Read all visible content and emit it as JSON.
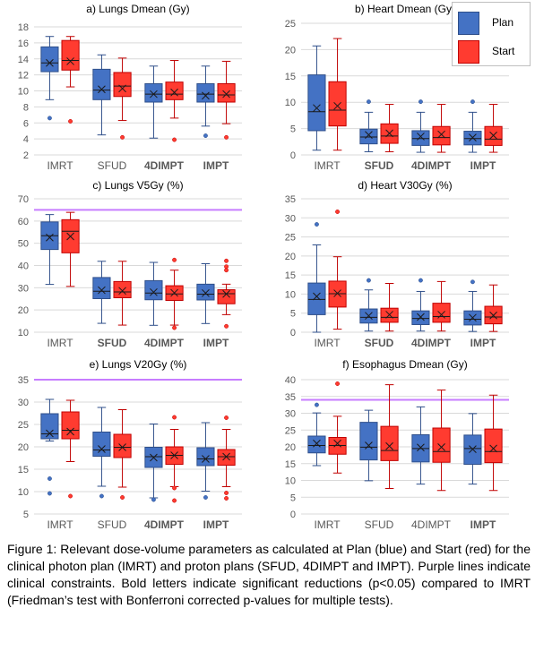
{
  "colors": {
    "plan_fill": "#4472c4",
    "plan_edge": "#2f4f8a",
    "start_fill": "#ff3b30",
    "start_edge": "#c00000",
    "constraint": "#c77dff",
    "grid": "#d9d9d9",
    "axis_text": "#595959"
  },
  "legend": {
    "plan_label": "Plan",
    "start_label": "Start"
  },
  "caption": "Figure 1: Relevant dose-volume parameters as calculated at Plan (blue) and Start (red) for the clinical photon plan (IMRT) and proton plans (SFUD, 4DIMPT and IMPT). Purple lines indicate clinical constraints. Bold letters indicate significant reductions (p<0.05) compared to IMRT (Friedman’s test with Bonferroni corrected p-values for multiple tests).",
  "chart_data": [
    {
      "type": "box",
      "title": "a) Lungs Dmean (Gy)",
      "categories": [
        "IMRT",
        "SFUD",
        "4DIMPT",
        "IMPT"
      ],
      "bold": [
        false,
        false,
        true,
        true
      ],
      "ylim": [
        2,
        18
      ],
      "ticks": [
        2,
        4,
        6,
        8,
        10,
        12,
        14,
        16,
        18
      ],
      "constraint": null,
      "series": [
        {
          "name": "Plan",
          "boxes": [
            {
              "min": 8.9,
              "q1": 12.4,
              "median": 13.5,
              "q3": 15.5,
              "max": 16.8,
              "mean": 13.5,
              "outliers": [
                6.6
              ]
            },
            {
              "min": 4.5,
              "q1": 8.9,
              "median": 10.1,
              "q3": 12.7,
              "max": 14.5,
              "mean": 10.2,
              "outliers": []
            },
            {
              "min": 4.1,
              "q1": 8.6,
              "median": 9.6,
              "q3": 10.9,
              "max": 13.1,
              "mean": 9.6,
              "outliers": []
            },
            {
              "min": 5.6,
              "q1": 8.6,
              "median": 9.6,
              "q3": 10.9,
              "max": 13.1,
              "mean": 9.4,
              "outliers": [
                4.4
              ]
            }
          ]
        },
        {
          "name": "Start",
          "boxes": [
            {
              "min": 10.5,
              "q1": 12.6,
              "median": 13.8,
              "q3": 16.3,
              "max": 16.8,
              "mean": 13.7,
              "outliers": [
                6.2
              ]
            },
            {
              "min": 6.3,
              "q1": 9.3,
              "median": 10.6,
              "q3": 12.3,
              "max": 14.1,
              "mean": 10.3,
              "outliers": [
                4.2
              ]
            },
            {
              "min": 6.6,
              "q1": 8.9,
              "median": 9.6,
              "q3": 11.1,
              "max": 13.8,
              "mean": 9.8,
              "outliers": [
                3.9
              ]
            },
            {
              "min": 5.9,
              "q1": 8.6,
              "median": 9.5,
              "q3": 10.9,
              "max": 13.7,
              "mean": 9.6,
              "outliers": [
                4.2
              ]
            }
          ]
        }
      ]
    },
    {
      "type": "box",
      "title": "b) Heart Dmean (Gy)",
      "categories": [
        "IMRT",
        "SFUD",
        "4DIMPT",
        "IMPT"
      ],
      "bold": [
        false,
        true,
        true,
        true
      ],
      "ylim": [
        0,
        25
      ],
      "ticks": [
        0,
        5,
        10,
        15,
        20,
        25
      ],
      "constraint": null,
      "series": [
        {
          "name": "Plan",
          "boxes": [
            {
              "min": 0.9,
              "q1": 4.6,
              "median": 8.2,
              "q3": 15.2,
              "max": 20.7,
              "mean": 8.9,
              "outliers": []
            },
            {
              "min": 0.6,
              "q1": 2.1,
              "median": 3.4,
              "q3": 4.9,
              "max": 8.1,
              "mean": 3.8,
              "outliers": [
                10.1
              ]
            },
            {
              "min": 0.5,
              "q1": 1.8,
              "median": 3.1,
              "q3": 4.6,
              "max": 8.1,
              "mean": 3.5,
              "outliers": [
                10.1
              ]
            },
            {
              "min": 0.5,
              "q1": 1.9,
              "median": 3.1,
              "q3": 4.5,
              "max": 8.1,
              "mean": 3.3,
              "outliers": [
                10.1
              ]
            }
          ]
        },
        {
          "name": "Start",
          "boxes": [
            {
              "min": 0.9,
              "q1": 5.5,
              "median": 8.5,
              "q3": 13.9,
              "max": 22.1,
              "mean": 9.3,
              "outliers": []
            },
            {
              "min": 0.6,
              "q1": 2.2,
              "median": 3.6,
              "q3": 5.9,
              "max": 9.6,
              "mean": 4.1,
              "outliers": []
            },
            {
              "min": 0.5,
              "q1": 1.9,
              "median": 3.3,
              "q3": 5.4,
              "max": 9.6,
              "mean": 3.9,
              "outliers": []
            },
            {
              "min": 0.5,
              "q1": 1.8,
              "median": 3.0,
              "q3": 5.4,
              "max": 9.6,
              "mean": 3.7,
              "outliers": []
            }
          ]
        }
      ]
    },
    {
      "type": "box",
      "title": "c) Lungs V5Gy (%)",
      "categories": [
        "IMRT",
        "SFUD",
        "4DIMPT",
        "IMPT"
      ],
      "bold": [
        false,
        true,
        true,
        true
      ],
      "ylim": [
        10,
        70
      ],
      "ticks": [
        10,
        20,
        30,
        40,
        50,
        60,
        70
      ],
      "constraint": 65,
      "series": [
        {
          "name": "Plan",
          "boxes": [
            {
              "min": 31.5,
              "q1": 47.2,
              "median": 53.4,
              "q3": 59.6,
              "max": 62.9,
              "mean": 52.6,
              "outliers": []
            },
            {
              "min": 14,
              "q1": 25.1,
              "median": 28.4,
              "q3": 34.6,
              "max": 41.9,
              "mean": 28.9,
              "outliers": []
            },
            {
              "min": 13.1,
              "q1": 24.6,
              "median": 27.6,
              "q3": 33.2,
              "max": 41.4,
              "mean": 28.0,
              "outliers": []
            },
            {
              "min": 13.9,
              "q1": 24.5,
              "median": 27.1,
              "q3": 31.6,
              "max": 40.8,
              "mean": 27.6,
              "outliers": []
            }
          ]
        },
        {
          "name": "Start",
          "boxes": [
            {
              "min": 30.6,
              "q1": 45.7,
              "median": 55.4,
              "q3": 60.6,
              "max": 63.9,
              "mean": 53.1,
              "outliers": []
            },
            {
              "min": 13.2,
              "q1": 25.5,
              "median": 28.1,
              "q3": 32.8,
              "max": 41.9,
              "mean": 28.6,
              "outliers": []
            },
            {
              "min": 13.2,
              "q1": 24.3,
              "median": 27.2,
              "q3": 30.9,
              "max": 37.9,
              "mean": 27.7,
              "outliers": [
                42.5,
                12.0
              ]
            },
            {
              "min": 17.9,
              "q1": 22.8,
              "median": 27.3,
              "q3": 29.1,
              "max": 31.6,
              "mean": 27.2,
              "outliers": [
                42.1,
                39.5,
                37.9,
                12.7
              ]
            }
          ]
        }
      ]
    },
    {
      "type": "box",
      "title": "d) Heart V30Gy (%)",
      "categories": [
        "IMRT",
        "SFUD",
        "4DIMPT",
        "IMPT"
      ],
      "bold": [
        false,
        true,
        true,
        true
      ],
      "ylim": [
        0,
        35
      ],
      "ticks": [
        0,
        5,
        10,
        15,
        20,
        25,
        30,
        35
      ],
      "constraint": null,
      "series": [
        {
          "name": "Plan",
          "boxes": [
            {
              "min": 0,
              "q1": 4.6,
              "median": 8.6,
              "q3": 12.9,
              "max": 22.9,
              "mean": 9.4,
              "outliers": [
                28.3
              ]
            },
            {
              "min": 0.3,
              "q1": 2.4,
              "median": 3.9,
              "q3": 6.1,
              "max": 11.1,
              "mean": 4.3,
              "outliers": [
                13.6
              ]
            },
            {
              "min": 0.3,
              "q1": 2.0,
              "median": 3.6,
              "q3": 5.6,
              "max": 10.7,
              "mean": 4.0,
              "outliers": [
                13.6
              ]
            },
            {
              "min": 0.2,
              "q1": 1.9,
              "median": 3.4,
              "q3": 5.6,
              "max": 10.7,
              "mean": 3.8,
              "outliers": [
                13.2
              ]
            }
          ]
        },
        {
          "name": "Start",
          "boxes": [
            {
              "min": 0.8,
              "q1": 6.6,
              "median": 10.1,
              "q3": 13.4,
              "max": 19.8,
              "mean": 10.2,
              "outliers": [
                31.6
              ]
            },
            {
              "min": 0.3,
              "q1": 2.6,
              "median": 3.9,
              "q3": 6.3,
              "max": 12.8,
              "mean": 4.6,
              "outliers": []
            },
            {
              "min": 0.3,
              "q1": 2.6,
              "median": 4.1,
              "q3": 7.6,
              "max": 13.3,
              "mean": 4.6,
              "outliers": []
            },
            {
              "min": 0.2,
              "q1": 2.2,
              "median": 4.0,
              "q3": 6.8,
              "max": 12.4,
              "mean": 4.4,
              "outliers": []
            }
          ]
        }
      ]
    },
    {
      "type": "box",
      "title": "e) Lungs V20Gy (%)",
      "categories": [
        "IMRT",
        "SFUD",
        "4DIMPT",
        "IMPT"
      ],
      "bold": [
        false,
        false,
        true,
        true
      ],
      "ylim": [
        5,
        35
      ],
      "ticks": [
        5,
        10,
        15,
        20,
        25,
        30,
        35
      ],
      "constraint": 35,
      "series": [
        {
          "name": "Plan",
          "boxes": [
            {
              "min": 21.3,
              "q1": 21.8,
              "median": 22.9,
              "q3": 27.4,
              "max": 30.6,
              "mean": 23.0,
              "outliers": [
                12.9,
                9.6
              ]
            },
            {
              "min": 11.2,
              "q1": 17.9,
              "median": 19.3,
              "q3": 23.3,
              "max": 28.8,
              "mean": 19.5,
              "outliers": [
                9.0
              ]
            },
            {
              "min": 8.6,
              "q1": 15.4,
              "median": 17.8,
              "q3": 19.9,
              "max": 25.1,
              "mean": 17.6,
              "outliers": [
                8.2
              ]
            },
            {
              "min": 10.1,
              "q1": 15.8,
              "median": 17.3,
              "q3": 19.8,
              "max": 25.4,
              "mean": 17.3,
              "outliers": [
                8.7
              ]
            }
          ]
        },
        {
          "name": "Start",
          "boxes": [
            {
              "min": 16.7,
              "q1": 21.8,
              "median": 23.7,
              "q3": 27.8,
              "max": 30.4,
              "mean": 23.4,
              "outliers": [
                9.0
              ]
            },
            {
              "min": 11.0,
              "q1": 17.6,
              "median": 19.9,
              "q3": 22.8,
              "max": 28.3,
              "mean": 19.9,
              "outliers": [
                8.7
              ]
            },
            {
              "min": 11.1,
              "q1": 16.1,
              "median": 18.1,
              "q3": 20.0,
              "max": 23.9,
              "mean": 18.1,
              "outliers": [
                26.6,
                10.8,
                8.0
              ]
            },
            {
              "min": 11.1,
              "q1": 15.9,
              "median": 17.8,
              "q3": 19.4,
              "max": 23.9,
              "mean": 17.8,
              "outliers": [
                26.5,
                9.7,
                8.5
              ]
            }
          ]
        }
      ]
    },
    {
      "type": "box",
      "title": "f) Esophagus Dmean (Gy)",
      "categories": [
        "IMRT",
        "SFUD",
        "4DIMPT",
        "IMPT"
      ],
      "bold": [
        false,
        false,
        false,
        true
      ],
      "ylim": [
        0,
        40
      ],
      "ticks": [
        0,
        5,
        10,
        15,
        20,
        25,
        30,
        35,
        40
      ],
      "constraint": 34,
      "series": [
        {
          "name": "Plan",
          "boxes": [
            {
              "min": 14.4,
              "q1": 18.2,
              "median": 20.4,
              "q3": 23.2,
              "max": 30.1,
              "mean": 21.0,
              "outliers": [
                32.5
              ]
            },
            {
              "min": 9.9,
              "q1": 16.1,
              "median": 19.9,
              "q3": 27.3,
              "max": 30.9,
              "mean": 20.4,
              "outliers": []
            },
            {
              "min": 8.9,
              "q1": 15.5,
              "median": 19.5,
              "q3": 23.6,
              "max": 31.9,
              "mean": 19.8,
              "outliers": []
            },
            {
              "min": 8.9,
              "q1": 14.8,
              "median": 19.5,
              "q3": 23.5,
              "max": 29.9,
              "mean": 19.3,
              "outliers": []
            }
          ]
        },
        {
          "name": "Start",
          "boxes": [
            {
              "min": 12.2,
              "q1": 17.8,
              "median": 20.4,
              "q3": 22.8,
              "max": 29.1,
              "mean": 21.0,
              "outliers": [
                38.8
              ]
            },
            {
              "min": 7.6,
              "q1": 15.9,
              "median": 18.9,
              "q3": 26.1,
              "max": 38.5,
              "mean": 20.2,
              "outliers": []
            },
            {
              "min": 7.0,
              "q1": 15.4,
              "median": 18.6,
              "q3": 25.6,
              "max": 36.9,
              "mean": 19.9,
              "outliers": []
            },
            {
              "min": 7.0,
              "q1": 15.3,
              "median": 18.6,
              "q3": 25.3,
              "max": 35.4,
              "mean": 19.5,
              "outliers": []
            }
          ]
        }
      ]
    }
  ]
}
